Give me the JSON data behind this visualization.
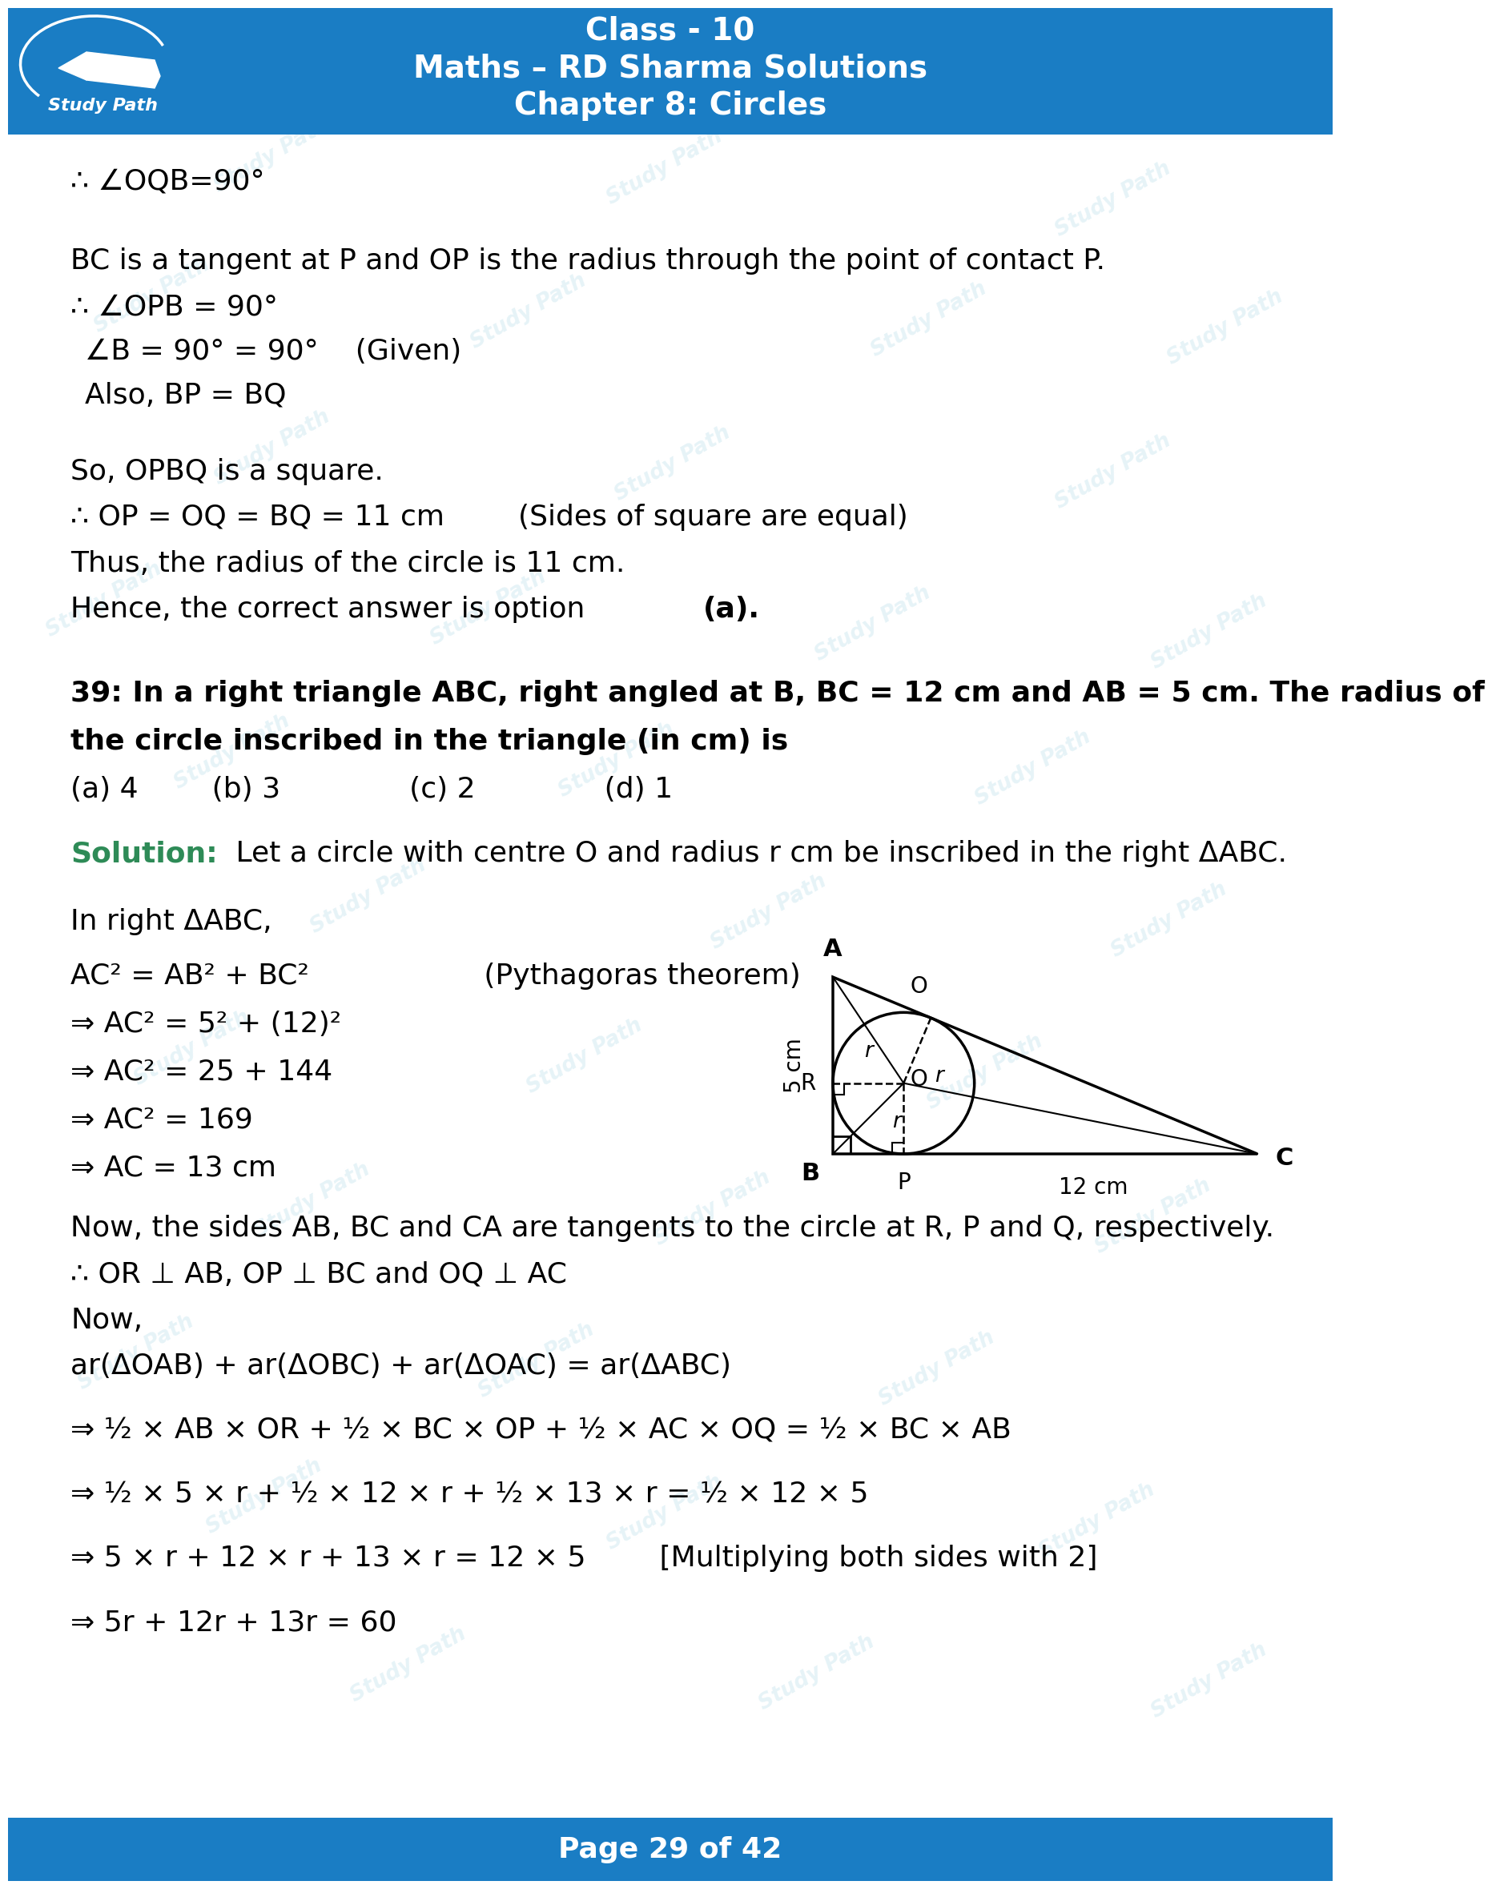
{
  "header_bg_color": "#1a7dc4",
  "header_text_color": "#ffffff",
  "page_bg_color": "#ffffff",
  "footer_bg_color": "#1a7dc4",
  "footer_text_color": "#ffffff",
  "body_text_color": "#000000",
  "green_color": "#2e8b57",
  "header_line1": "Class - 10",
  "header_line2": "Maths – RD Sharma Solutions",
  "header_line3": "Chapter 8: Circles",
  "footer_text": "Page 29 of 42",
  "watermark_color": "#add8e6",
  "line1": "∴ ∠OQB=90°",
  "line2": "BC is a tangent at P and OP is the radius through the point of contact P.",
  "line3": "∴ ∠OPB = 90°",
  "line4": "∠B = 90° = 90°    (Given)",
  "line5": "Also, BP = BQ",
  "line6": "So, OPBQ is a square.",
  "line7": "∴ OP = OQ = BQ = 11 cm        (Sides of square are equal)",
  "line8": "Thus, the radius of the circle is 11 cm.",
  "line9a": "Hence, the correct answer is option ",
  "line9b": "(a).",
  "q39_line1": "39: In a right triangle ABC, right angled at B, BC = 12 cm and AB = 5 cm. The radius of",
  "q39_line2": "the circle inscribed in the triangle (in cm) is",
  "q39_options": "(a) 4        (b) 3              (c) 2              (d) 1",
  "sol_label": "Solution:",
  "sol_text": " Let a circle with centre O and radius r cm be inscribed in the right ΔABC.",
  "sol2": "In right ΔABC,",
  "sol3": "AC² = AB² + BC²                   (Pythagoras theorem)",
  "sol4": "⇒ AC² = 5² + (12)²",
  "sol5": "⇒ AC² = 25 + 144",
  "sol6": "⇒ AC² = 169",
  "sol7": "⇒ AC = 13 cm",
  "sol8": "Now, the sides AB, BC and CA are tangents to the circle at R, P and Q, respectively.",
  "sol9": "∴ OR ⊥ AB, OP ⊥ BC and OQ ⊥ AC",
  "sol10": "Now,",
  "sol11": "ar(ΔOAB) + ar(ΔOBC) + ar(ΔOAC) = ar(ΔABC)",
  "sol12": "⇒ ½ × AB × OR + ½ × BC × OP + ½ × AC × OQ = ½ × BC × AB",
  "sol13": "⇒ ½ × 5 × r + ½ × 12 × r + ½ × 13 × r = ½ × 12 × 5",
  "sol14": "⇒ 5 × r + 12 × r + 13 × r = 12 × 5        [Multiplying both sides with 2]",
  "sol15": "⇒ 5r + 12r + 13r = 60"
}
